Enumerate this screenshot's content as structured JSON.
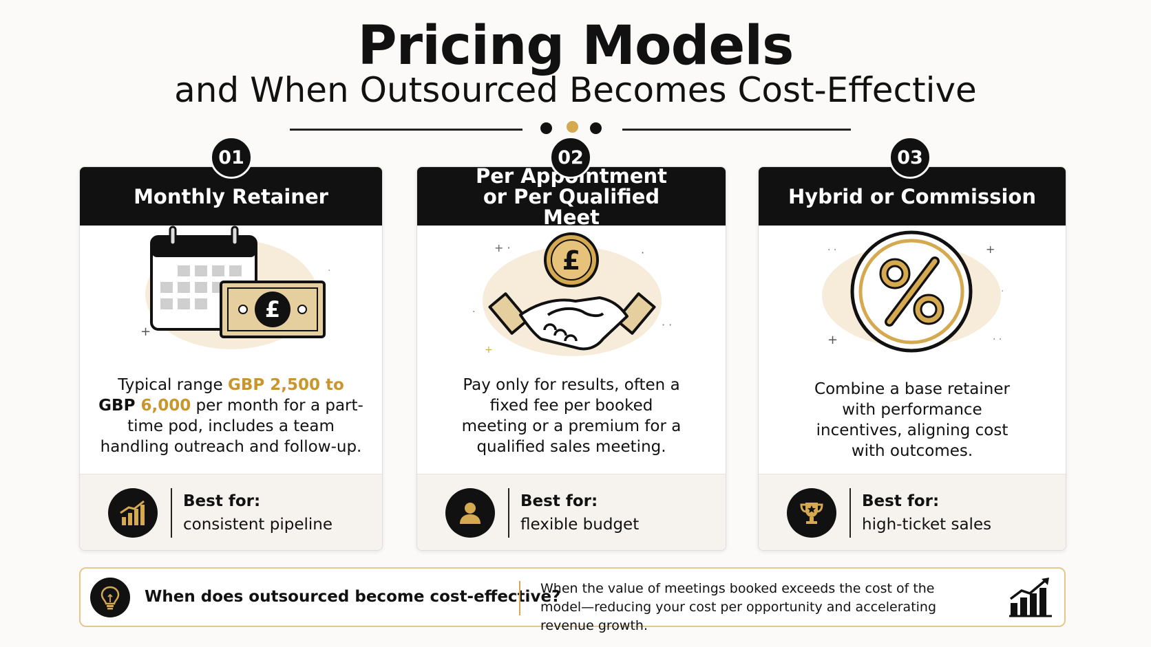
{
  "header": {
    "title": "Pricing Models",
    "subtitle": "and When Outsourced Becomes Cost-Effective"
  },
  "colors": {
    "accent": "#d5a94f",
    "dark": "#111111",
    "cream": "#f6f3ef"
  },
  "cards": [
    {
      "number": "01",
      "title": "Monthly Retainer",
      "text_parts": [
        "Typical range ",
        "GBP 2,500 to",
        "GBP ",
        "6,000",
        " per month for a part-time pod, includes a team handling outreach and follow-up."
      ],
      "best_for_label": "Best for:",
      "best_for_value": "consistent pipeline",
      "illustration_icon": "calendar-and-banknote-icon",
      "footer_icon": "growth-chart-icon"
    },
    {
      "number": "02",
      "title": "Per Appointment or Per Qualified Meet",
      "text": "Pay only for results, often a fixed fee per booked meeting or a premium for a qualified sales meeting.",
      "best_for_label": "Best for:",
      "best_for_value": "flexible budget",
      "illustration_icon": "handshake-pound-coin-icon",
      "footer_icon": "person-icon"
    },
    {
      "number": "03",
      "title": "Hybrid or Commission",
      "text": "Combine a base retainer with performance incentives, aligning cost with outcomes.",
      "best_for_label": "Best for:",
      "best_for_value": "high-ticket sales",
      "illustration_icon": "percent-coin-icon",
      "footer_icon": "trophy-icon"
    }
  ],
  "callout": {
    "question": "When does outsourced become cost-effective?",
    "answer": "When the value of meetings booked exceeds the cost of the model—reducing your cost per opportunity and accelerating revenue growth.",
    "left_icon": "lightbulb-icon",
    "right_icon": "rising-bar-chart-icon"
  }
}
